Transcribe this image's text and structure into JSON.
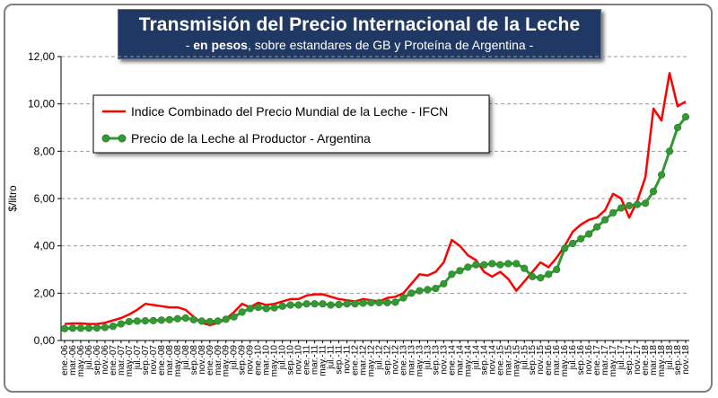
{
  "chart_data": {
    "type": "line",
    "title": "Transmisión del Precio Internacional de la Leche",
    "subtitle_bold": "en pesos",
    "subtitle_rest": ", sobre estandares de GB y Proteína de  Argentina -",
    "subtitle_prefix": "- ",
    "ylabel": "$/litro",
    "xlabel": "",
    "ylim": [
      0,
      12
    ],
    "yticks": [
      "0,00",
      "2,00",
      "4,00",
      "6,00",
      "8,00",
      "10,00",
      "12,00"
    ],
    "ytick_values": [
      0,
      2,
      4,
      6,
      8,
      10,
      12
    ],
    "grid": true,
    "legend_position": "top-left",
    "x_tick_labels": [
      "ene.-06",
      "mar.-06",
      "may.-06",
      "jul.-06",
      "sep.-06",
      "nov.-06",
      "ene.-07",
      "mar.-07",
      "may.-07",
      "jul.-07",
      "sep.-07",
      "nov.-07",
      "ene.-08",
      "mar.-08",
      "may.-08",
      "jul.-08",
      "sep.-08",
      "nov.-08",
      "ene.-09",
      "mar.-09",
      "may.-09",
      "jul.-09",
      "sep.-09",
      "nov.-09",
      "ene.-10",
      "mar.-10",
      "may.-10",
      "jul.-10",
      "sep.-10",
      "nov.-10",
      "ene.-11",
      "mar.-11",
      "may.-11",
      "jul.-11",
      "sep.-11",
      "nov.-11",
      "ene.-12",
      "mar.-12",
      "may.-12",
      "jul.-12",
      "sep.-12",
      "nov.-12",
      "ene.-13",
      "mar.-13",
      "may.-13",
      "jul.-13",
      "sep.-13",
      "nov.-13",
      "ene.-14",
      "mar.-14",
      "may.-14",
      "jul.-14",
      "sep.-14",
      "nov.-14",
      "ene.-15",
      "mar.-15",
      "may.-15",
      "jul.-15",
      "sep.-15",
      "nov.-15",
      "ene.-16",
      "mar.-16",
      "may.-16",
      "jul.-16",
      "sep.-16",
      "nov.-16",
      "ene.-17",
      "mar.-17",
      "may.-17",
      "jul.-17",
      "sep.-17",
      "nov.-17",
      "ene.-18",
      "mar.-18",
      "may.-18",
      "jul.-18",
      "sep.-18",
      "nov.-18"
    ],
    "series": [
      {
        "name": "Indice Combinado del Precio Mundial de la Leche - IFCN",
        "color": "#ff0000",
        "marker": "none",
        "values": [
          0.7,
          0.72,
          0.72,
          0.7,
          0.7,
          0.75,
          0.85,
          0.95,
          1.1,
          1.3,
          1.55,
          1.5,
          1.45,
          1.4,
          1.4,
          1.3,
          1.0,
          0.75,
          0.65,
          0.75,
          0.9,
          1.2,
          1.55,
          1.4,
          1.6,
          1.5,
          1.55,
          1.65,
          1.75,
          1.75,
          1.9,
          1.95,
          1.95,
          1.85,
          1.75,
          1.7,
          1.65,
          1.75,
          1.7,
          1.65,
          1.8,
          1.85,
          2.0,
          2.4,
          2.8,
          2.75,
          2.9,
          3.3,
          4.25,
          4.0,
          3.6,
          3.4,
          2.9,
          2.7,
          2.9,
          2.6,
          2.1,
          2.5,
          2.9,
          3.3,
          3.1,
          3.5,
          4.0,
          4.6,
          4.9,
          5.1,
          5.2,
          5.5,
          6.2,
          6.0,
          5.2,
          5.9,
          6.9,
          9.8,
          9.3,
          11.3,
          9.9,
          10.1
        ]
      },
      {
        "name": "Precio de la Leche al Productor - Argentina",
        "color": "#339933",
        "marker": "circle",
        "values": [
          0.5,
          0.52,
          0.52,
          0.52,
          0.53,
          0.55,
          0.6,
          0.7,
          0.8,
          0.82,
          0.83,
          0.84,
          0.86,
          0.88,
          0.92,
          0.95,
          0.88,
          0.82,
          0.8,
          0.82,
          0.9,
          1.0,
          1.2,
          1.35,
          1.4,
          1.35,
          1.38,
          1.45,
          1.5,
          1.5,
          1.55,
          1.55,
          1.55,
          1.5,
          1.52,
          1.55,
          1.55,
          1.58,
          1.6,
          1.6,
          1.6,
          1.62,
          1.8,
          2.0,
          2.1,
          2.15,
          2.2,
          2.4,
          2.8,
          2.95,
          3.1,
          3.2,
          3.2,
          3.25,
          3.2,
          3.25,
          3.25,
          3.05,
          2.7,
          2.65,
          2.8,
          3.0,
          3.9,
          4.1,
          4.3,
          4.5,
          4.8,
          5.1,
          5.4,
          5.6,
          5.7,
          5.75,
          5.8,
          6.3,
          7.0,
          8.0,
          9.0,
          9.45
        ]
      }
    ]
  }
}
